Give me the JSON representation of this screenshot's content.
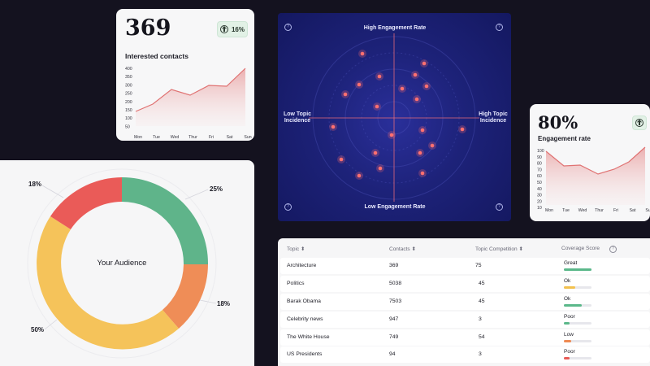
{
  "contacts_card": {
    "value": "369",
    "change": "16%",
    "label": "Interested contacts",
    "y_ticks": [
      "400",
      "350",
      "300",
      "250",
      "200",
      "150",
      "100",
      "50"
    ],
    "days": [
      "Mon",
      "Tue",
      "Wed",
      "Thur",
      "Fri",
      "Sat",
      "Sun"
    ]
  },
  "engagement_card": {
    "value": "80%",
    "label": "Engagement rate",
    "y_ticks": [
      "100",
      "90",
      "80",
      "70",
      "60",
      "50",
      "40",
      "30",
      "20",
      "10"
    ],
    "days": [
      "Mon",
      "Tue",
      "Wed",
      "Thur",
      "Fri",
      "Sat",
      "Sun"
    ]
  },
  "radar": {
    "top_label": "High Engagement Rate",
    "bottom_label": "Low Engagement Rate",
    "left_label_1": "Low Topic",
    "left_label_2": "Incidence",
    "right_label_1": "High Topic",
    "right_label_2": "Incidence",
    "help": "?"
  },
  "audience": {
    "title": "Your Audience",
    "pct_green": "25%",
    "pct_orange": "18%",
    "pct_yellow": "50%",
    "pct_red": "18%"
  },
  "table": {
    "headers": {
      "topic": "Topic ⬍",
      "contacts": "Contacts ⬍",
      "competition": "Topic Competition ⬍",
      "coverage": "Coverage Score",
      "help": "?"
    },
    "rows": [
      {
        "topic": "Architecture",
        "contacts": "369",
        "competition": "75",
        "coverage": "Great",
        "fill": 1.0,
        "color": "#5bb88a"
      },
      {
        "topic": "Politics",
        "contacts": "5038",
        "competition": "45",
        "coverage": "Ok",
        "fill": 0.4,
        "color": "#f2c14e"
      },
      {
        "topic": "Barak Obama",
        "contacts": "7503",
        "competition": "45",
        "coverage": "Ok",
        "fill": 0.65,
        "color": "#5bb88a"
      },
      {
        "topic": "Celebrity news",
        "contacts": "947",
        "competition": "3",
        "coverage": "Poor",
        "fill": 0.2,
        "color": "#5bb88a"
      },
      {
        "topic": "The White House",
        "contacts": "749",
        "competition": "54",
        "coverage": "Low",
        "fill": 0.25,
        "color": "#ef8a52"
      },
      {
        "topic": "US Presidents",
        "contacts": "94",
        "competition": "3",
        "coverage": "Poor",
        "fill": 0.2,
        "color": "#e85a55"
      }
    ]
  }
}
